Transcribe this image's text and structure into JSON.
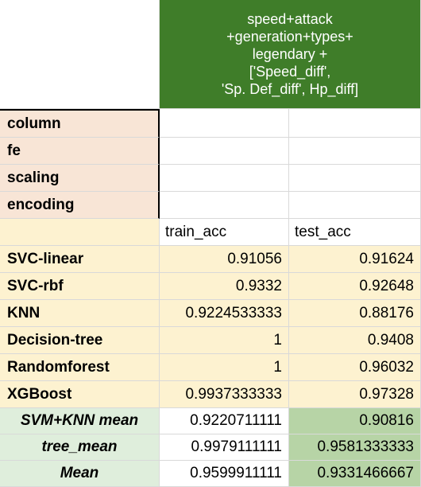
{
  "header": {
    "lines": [
      "speed+attack",
      "+generation+types+",
      "legendary +",
      "['Speed_diff',",
      "'Sp. Def_diff', Hp_diff]"
    ]
  },
  "meta_rows": [
    {
      "label": "column"
    },
    {
      "label": "fe"
    },
    {
      "label": "scaling"
    },
    {
      "label": "encoding"
    }
  ],
  "columns": {
    "train": "train_acc",
    "test": "test_acc"
  },
  "models": [
    {
      "name": "SVC-linear",
      "train": "0.91056",
      "test": "0.91624"
    },
    {
      "name": "SVC-rbf",
      "train": "0.9332",
      "test": "0.92648"
    },
    {
      "name": "KNN",
      "train": "0.9224533333",
      "test": "0.88176"
    },
    {
      "name": "Decision-tree",
      "train": "1",
      "test": "0.9408"
    },
    {
      "name": "Randomforest",
      "train": "1",
      "test": "0.96032"
    },
    {
      "name": "XGBoost",
      "train": "0.9937333333",
      "test": "0.97328"
    }
  ],
  "summary": [
    {
      "name": "SVM+KNN mean",
      "train": "0.9220711111",
      "test": "0.90816"
    },
    {
      "name": "tree_mean",
      "train": "0.9979111111",
      "test": "0.9581333333"
    },
    {
      "name": "Mean",
      "train": "0.9599911111",
      "test": "0.9331466667"
    }
  ],
  "colors": {
    "header": "#3f7d29",
    "label_bg": "#f8e5d6",
    "model_bg": "#fdf2d0",
    "summary_bg": "#dfeedc",
    "summary_test_bg": "#b7d4a6"
  }
}
